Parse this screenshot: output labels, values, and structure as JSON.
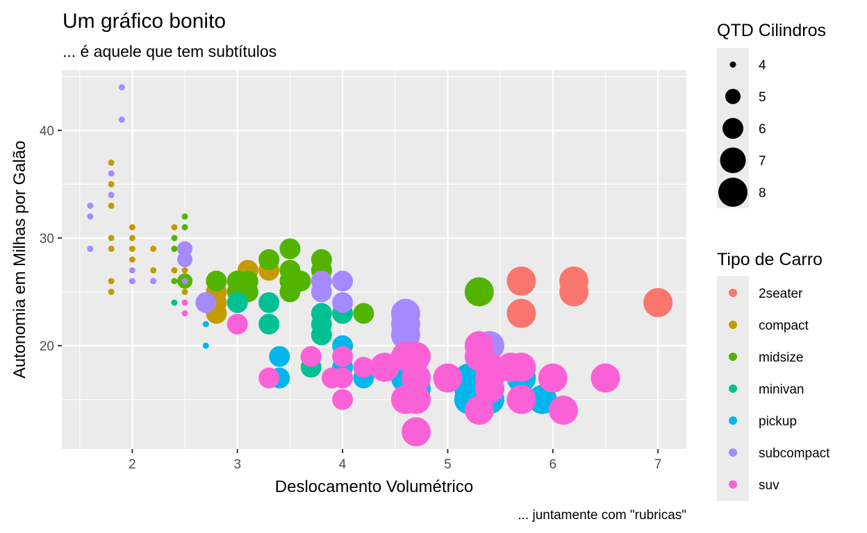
{
  "chart_data": {
    "type": "scatter",
    "title": "Um gráfico bonito",
    "subtitle": "... é aquele que tem subtítulos",
    "caption": "... juntamente com \"rubricas\"",
    "xlabel": "Deslocamento Volumétrico",
    "ylabel": "Autonomia em Milhas por Galão",
    "xlim": [
      1.33,
      7.27
    ],
    "ylim": [
      10.4,
      45.6
    ],
    "x_ticks": [
      2,
      3,
      4,
      5,
      6,
      7
    ],
    "y_ticks": [
      20,
      30,
      40
    ],
    "grid": true,
    "size_legend": {
      "title": "QTD Cilindros",
      "levels": [
        4,
        5,
        6,
        7,
        8
      ]
    },
    "color_legend": {
      "title": "Tipo de Carro",
      "categories": [
        "2seater",
        "compact",
        "midsize",
        "minivan",
        "pickup",
        "subcompact",
        "suv"
      ],
      "colors": [
        "#F8766D",
        "#C49A00",
        "#53B400",
        "#00C094",
        "#00B6EB",
        "#A58AFF",
        "#FB61D7"
      ]
    },
    "series": [
      {
        "name": "2seater",
        "points": [
          [
            5.7,
            26,
            8
          ],
          [
            5.7,
            23,
            8
          ],
          [
            6.2,
            26,
            8
          ],
          [
            6.2,
            25,
            8
          ],
          [
            7.0,
            24,
            8
          ]
        ]
      },
      {
        "name": "compact",
        "points": [
          [
            1.8,
            37,
            4
          ],
          [
            1.8,
            35,
            4
          ],
          [
            1.8,
            33,
            4
          ],
          [
            1.8,
            30,
            4
          ],
          [
            1.8,
            29,
            4
          ],
          [
            1.8,
            26,
            4
          ],
          [
            1.8,
            25,
            4
          ],
          [
            2.0,
            31,
            4
          ],
          [
            2.0,
            30,
            4
          ],
          [
            2.0,
            29,
            4
          ],
          [
            2.0,
            28,
            4
          ],
          [
            2.0,
            26,
            4
          ],
          [
            2.2,
            29,
            4
          ],
          [
            2.2,
            27,
            4
          ],
          [
            2.4,
            31,
            4
          ],
          [
            2.4,
            30,
            4
          ],
          [
            2.4,
            29,
            4
          ],
          [
            2.4,
            27,
            4
          ],
          [
            2.5,
            27,
            4
          ],
          [
            2.5,
            26,
            4
          ],
          [
            2.5,
            25,
            4
          ],
          [
            2.8,
            26,
            6
          ],
          [
            2.8,
            25,
            6
          ],
          [
            2.8,
            24,
            6
          ],
          [
            2.8,
            23,
            6
          ],
          [
            3.0,
            26,
            6
          ],
          [
            3.1,
            27,
            6
          ],
          [
            3.3,
            27,
            6
          ]
        ]
      },
      {
        "name": "midsize",
        "points": [
          [
            2.4,
            30,
            4
          ],
          [
            2.4,
            29,
            4
          ],
          [
            2.4,
            26,
            4
          ],
          [
            2.5,
            32,
            4
          ],
          [
            2.5,
            31,
            4
          ],
          [
            2.5,
            29,
            4
          ],
          [
            2.5,
            26,
            5
          ],
          [
            2.8,
            26,
            6
          ],
          [
            3.0,
            26,
            6
          ],
          [
            3.0,
            25,
            6
          ],
          [
            3.1,
            26,
            6
          ],
          [
            3.1,
            25,
            6
          ],
          [
            3.3,
            28,
            6
          ],
          [
            3.5,
            29,
            6
          ],
          [
            3.5,
            27,
            6
          ],
          [
            3.5,
            26,
            6
          ],
          [
            3.5,
            25,
            6
          ],
          [
            3.6,
            26,
            6
          ],
          [
            3.8,
            28,
            6
          ],
          [
            3.8,
            27,
            6
          ],
          [
            3.8,
            26,
            6
          ],
          [
            4.0,
            23,
            6
          ],
          [
            4.2,
            23,
            6
          ],
          [
            5.3,
            25,
            8
          ]
        ]
      },
      {
        "name": "minivan",
        "points": [
          [
            2.4,
            24,
            4
          ],
          [
            3.0,
            24,
            6
          ],
          [
            3.3,
            24,
            6
          ],
          [
            3.3,
            22,
            6
          ],
          [
            3.8,
            23,
            6
          ],
          [
            3.8,
            22,
            6
          ],
          [
            3.8,
            21,
            6
          ],
          [
            4.0,
            23,
            6
          ],
          [
            3.7,
            18,
            6
          ]
        ]
      },
      {
        "name": "pickup",
        "points": [
          [
            2.7,
            22,
            4
          ],
          [
            2.7,
            20,
            4
          ],
          [
            3.4,
            19,
            6
          ],
          [
            3.4,
            17,
            6
          ],
          [
            4.0,
            20,
            6
          ],
          [
            4.0,
            18,
            6
          ],
          [
            4.2,
            17,
            6
          ],
          [
            4.6,
            17,
            8
          ],
          [
            4.7,
            17,
            8
          ],
          [
            4.7,
            16,
            8
          ],
          [
            5.2,
            17,
            8
          ],
          [
            5.2,
            16,
            8
          ],
          [
            5.2,
            15,
            8
          ],
          [
            5.3,
            17,
            8
          ],
          [
            5.3,
            15,
            8
          ],
          [
            5.4,
            16,
            8
          ],
          [
            5.4,
            15,
            8
          ],
          [
            5.7,
            17,
            8
          ],
          [
            5.9,
            15,
            8
          ]
        ]
      },
      {
        "name": "subcompact",
        "points": [
          [
            1.6,
            33,
            4
          ],
          [
            1.6,
            32,
            4
          ],
          [
            1.6,
            29,
            4
          ],
          [
            1.8,
            36,
            4
          ],
          [
            1.8,
            34,
            4
          ],
          [
            1.9,
            44,
            4
          ],
          [
            1.9,
            41,
            4
          ],
          [
            2.0,
            27,
            4
          ],
          [
            2.0,
            26,
            4
          ],
          [
            2.2,
            26,
            4
          ],
          [
            2.5,
            26,
            4
          ],
          [
            2.5,
            29,
            5
          ],
          [
            2.5,
            28,
            5
          ],
          [
            2.7,
            24,
            6
          ],
          [
            3.8,
            26,
            6
          ],
          [
            3.8,
            25,
            6
          ],
          [
            4.0,
            26,
            6
          ],
          [
            4.0,
            24,
            6
          ],
          [
            4.6,
            23,
            8
          ],
          [
            4.6,
            22,
            8
          ],
          [
            4.6,
            21,
            8
          ],
          [
            5.4,
            20,
            8
          ]
        ]
      },
      {
        "name": "suv",
        "points": [
          [
            2.5,
            24,
            4
          ],
          [
            2.5,
            23,
            4
          ],
          [
            3.0,
            22,
            6
          ],
          [
            3.3,
            17,
            6
          ],
          [
            3.7,
            19,
            6
          ],
          [
            3.9,
            17,
            6
          ],
          [
            4.0,
            19,
            6
          ],
          [
            4.0,
            17,
            6
          ],
          [
            4.0,
            15,
            6
          ],
          [
            4.2,
            18,
            6
          ],
          [
            4.4,
            18,
            8
          ],
          [
            4.6,
            19,
            8
          ],
          [
            4.6,
            15,
            8
          ],
          [
            4.7,
            19,
            8
          ],
          [
            4.7,
            17,
            8
          ],
          [
            4.7,
            15,
            8
          ],
          [
            4.7,
            12,
            8
          ],
          [
            5.0,
            17,
            8
          ],
          [
            5.3,
            20,
            8
          ],
          [
            5.3,
            19,
            8
          ],
          [
            5.3,
            14,
            8
          ],
          [
            5.4,
            18,
            8
          ],
          [
            5.4,
            17,
            8
          ],
          [
            5.4,
            16,
            8
          ],
          [
            5.6,
            18,
            8
          ],
          [
            5.7,
            18,
            8
          ],
          [
            5.7,
            15,
            8
          ],
          [
            6.0,
            17,
            8
          ],
          [
            6.1,
            14,
            8
          ],
          [
            6.5,
            17,
            8
          ]
        ]
      }
    ]
  }
}
